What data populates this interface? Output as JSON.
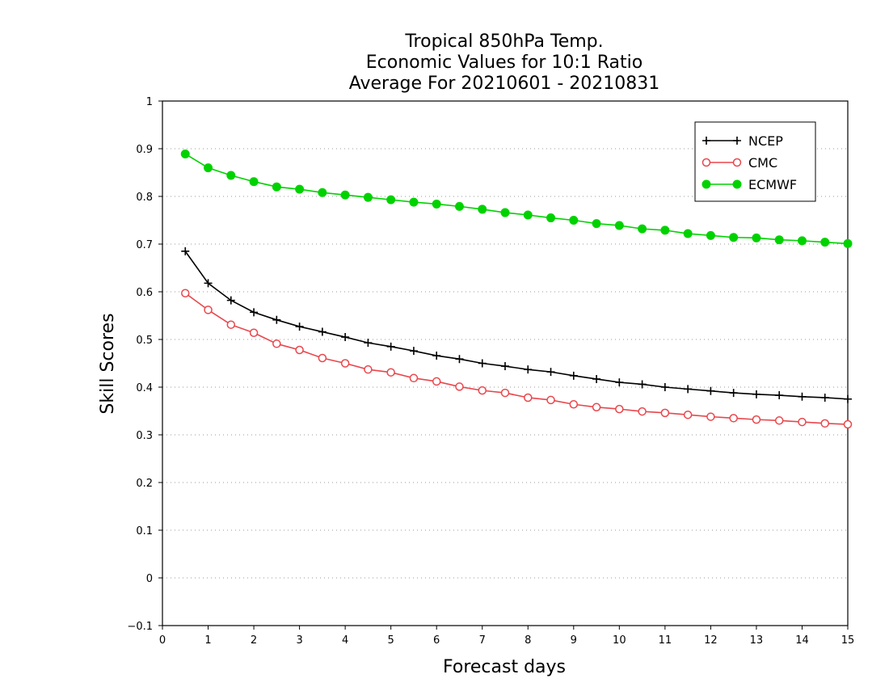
{
  "chart_data": {
    "type": "line",
    "title_lines": [
      "Tropical 850hPa Temp.",
      "Economic Values for 10:1 Ratio",
      "Average For 20210601 - 20210831"
    ],
    "xlabel": "Forecast days",
    "ylabel": "Skill Scores",
    "xlim": [
      0,
      15
    ],
    "ylim": [
      -0.1,
      1
    ],
    "x_ticks": [
      "0",
      "1",
      "2",
      "3",
      "4",
      "5",
      "6",
      "7",
      "8",
      "9",
      "10",
      "11",
      "12",
      "13",
      "14",
      "15"
    ],
    "y_ticks": [
      "−0.1",
      "0",
      "0.1",
      "0.2",
      "0.3",
      "0.4",
      "0.5",
      "0.6",
      "0.7",
      "0.8",
      "0.9",
      "1"
    ],
    "y_tick_values": [
      -0.1,
      0,
      0.1,
      0.2,
      0.3,
      0.4,
      0.5,
      0.6,
      0.7,
      0.8,
      0.9,
      1.0
    ],
    "grid": "horizontal dotted",
    "legend_position": "top-right",
    "x": [
      0.5,
      1,
      1.5,
      2,
      2.5,
      3,
      3.5,
      4,
      4.5,
      5,
      5.5,
      6,
      6.5,
      7,
      7.5,
      8,
      8.5,
      9,
      9.5,
      10,
      10.5,
      11,
      11.5,
      12,
      12.5,
      13,
      13.5,
      14,
      14.5,
      15
    ],
    "series": [
      {
        "name": "NCEP",
        "color": "#000000",
        "marker": "plus",
        "values": [
          0.685,
          0.618,
          0.582,
          0.557,
          0.541,
          0.527,
          0.516,
          0.505,
          0.493,
          0.485,
          0.476,
          0.466,
          0.459,
          0.45,
          0.444,
          0.437,
          0.432,
          0.424,
          0.417,
          0.41,
          0.406,
          0.4,
          0.396,
          0.392,
          0.388,
          0.385,
          0.383,
          0.38,
          0.378,
          0.375
        ]
      },
      {
        "name": "CMC",
        "color": "#e8474c",
        "marker": "open-circle",
        "values": [
          0.597,
          0.562,
          0.531,
          0.514,
          0.491,
          0.478,
          0.461,
          0.45,
          0.437,
          0.431,
          0.419,
          0.412,
          0.401,
          0.393,
          0.388,
          0.378,
          0.373,
          0.364,
          0.358,
          0.354,
          0.349,
          0.346,
          0.342,
          0.338,
          0.335,
          0.332,
          0.33,
          0.327,
          0.324,
          0.322
        ]
      },
      {
        "name": "ECMWF",
        "color": "#00d200",
        "marker": "filled-circle",
        "values": [
          0.889,
          0.86,
          0.844,
          0.831,
          0.82,
          0.815,
          0.808,
          0.803,
          0.798,
          0.793,
          0.788,
          0.784,
          0.779,
          0.773,
          0.766,
          0.761,
          0.755,
          0.75,
          0.743,
          0.739,
          0.732,
          0.729,
          0.722,
          0.718,
          0.714,
          0.713,
          0.709,
          0.707,
          0.704,
          0.701
        ]
      }
    ]
  }
}
